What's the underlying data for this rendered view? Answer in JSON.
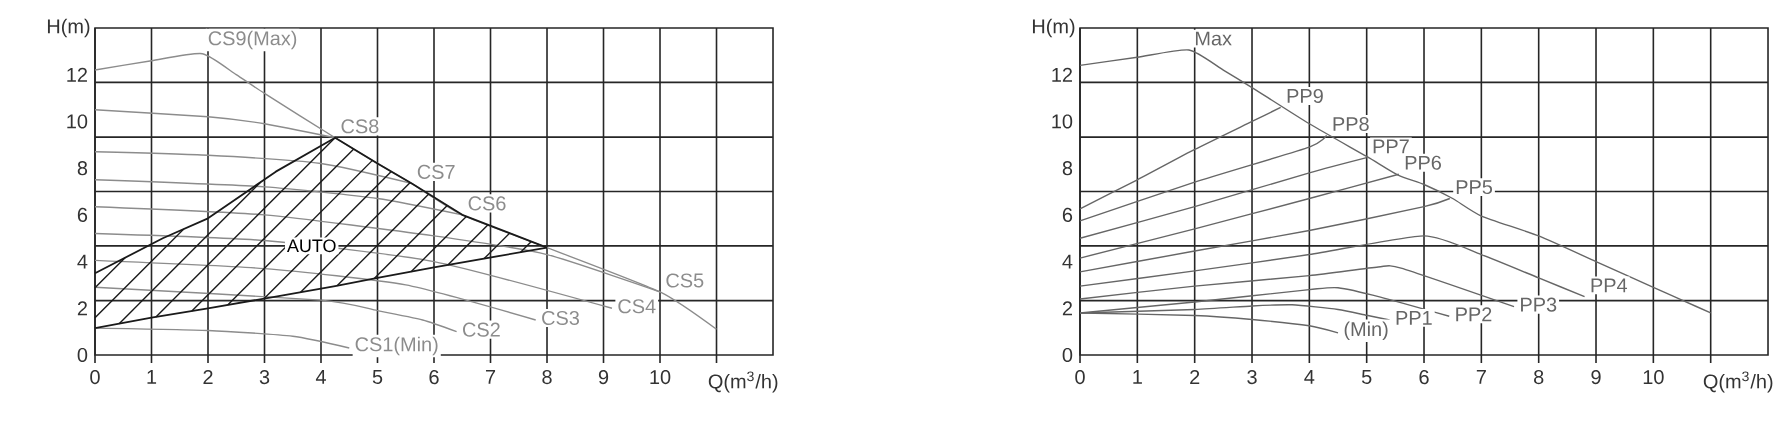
{
  "chart_data": [
    {
      "type": "line",
      "xlabel": "Q(m$^{3}$/h)",
      "ylabel": "H(m)",
      "xlim": [
        0,
        12
      ],
      "ylim": [
        0,
        14
      ],
      "grid": true,
      "xticks": [
        0,
        1,
        2,
        3,
        4,
        5,
        6,
        7,
        8,
        9,
        10,
        {
          "value": 11,
          "label": null
        }
      ],
      "yticks": [
        0,
        2,
        4,
        6,
        8,
        10,
        12,
        {
          "value": 2.33,
          "label": null
        },
        {
          "value": 4.67,
          "label": null
        },
        {
          "value": 7,
          "label": null
        },
        {
          "value": 9.33,
          "label": null
        },
        {
          "value": 11.67,
          "label": null
        }
      ],
      "annotations": [
        "AUTO"
      ],
      "series": [
        {
          "name": "CS9(Max)",
          "color": "#8c8c8c",
          "x": [
            0,
            1,
            1.9,
            2.5,
            3,
            4.25,
            5,
            5.6,
            6.5,
            8,
            10,
            11
          ],
          "values": [
            12.2,
            12.6,
            12.9,
            12.0,
            11.2,
            9.3,
            8.2,
            7.35,
            6.0,
            4.6,
            2.7,
            1.1
          ]
        },
        {
          "name": "CS8",
          "color": "#8c8c8c",
          "x": [
            0,
            2,
            3,
            4.25
          ],
          "values": [
            10.5,
            10.2,
            9.9,
            9.3
          ]
        },
        {
          "name": "CS7",
          "color": "#8c8c8c",
          "x": [
            0,
            2,
            4,
            5.6
          ],
          "values": [
            8.7,
            8.55,
            8.2,
            7.35
          ]
        },
        {
          "name": "CS6",
          "color": "#8c8c8c",
          "x": [
            0,
            3,
            5,
            6.5
          ],
          "values": [
            7.5,
            7.2,
            6.7,
            6.0
          ]
        },
        {
          "name": "CS5",
          "color": "#8c8c8c",
          "x": [
            0,
            3,
            6,
            8,
            10
          ],
          "values": [
            6.35,
            6.0,
            5.1,
            4.3,
            2.7
          ]
        },
        {
          "name": "CS4",
          "color": "#8c8c8c",
          "x": [
            0,
            3,
            6,
            9.15
          ],
          "values": [
            5.2,
            4.9,
            4.0,
            2.0
          ]
        },
        {
          "name": "CS3",
          "color": "#8c8c8c",
          "x": [
            0,
            3,
            5.5,
            7.8
          ],
          "values": [
            4.05,
            3.7,
            3.0,
            1.5
          ]
        },
        {
          "name": "CS2",
          "color": "#8c8c8c",
          "x": [
            0,
            4,
            5,
            5.8,
            6.4
          ],
          "values": [
            2.9,
            2.35,
            1.9,
            1.5,
            1.0
          ]
        },
        {
          "name": "CS1(Min)",
          "color": "#8c8c8c",
          "x": [
            0,
            2,
            3.5,
            4.5
          ],
          "values": [
            1.15,
            1.05,
            0.8,
            0.3
          ]
        },
        {
          "color": "#1a1a1a",
          "x": [
            0,
            1.2,
            2,
            3.2,
            4.25,
            5,
            5.6,
            6.5,
            8
          ],
          "values": [
            3.5,
            5.0,
            5.85,
            7.85,
            9.3,
            8.2,
            7.35,
            6.0,
            4.6
          ]
        },
        {
          "color": "#1a1a1a",
          "x": [
            0,
            1,
            2,
            3.2,
            4.25,
            5,
            6,
            8
          ],
          "values": [
            1.15,
            1.6,
            2.0,
            2.5,
            2.95,
            3.3,
            3.75,
            4.6
          ]
        }
      ]
    },
    {
      "type": "line",
      "xlabel": "Q(m$^{3}$/h)",
      "ylabel": "H(m)",
      "xlim": [
        0,
        12
      ],
      "ylim": [
        0,
        14
      ],
      "grid": true,
      "xticks": [
        0,
        1,
        2,
        3,
        4,
        5,
        6,
        7,
        8,
        9,
        10,
        {
          "value": 11,
          "label": null
        }
      ],
      "yticks": [
        0,
        2,
        4,
        6,
        8,
        10,
        12,
        {
          "value": 2.33,
          "label": null
        },
        {
          "value": 4.67,
          "label": null
        },
        {
          "value": 7,
          "label": null
        },
        {
          "value": 9.33,
          "label": null
        },
        {
          "value": 11.67,
          "label": null
        }
      ],
      "series": [
        {
          "name": "Max",
          "color": "#666666",
          "x": [
            0,
            1,
            1.9,
            2.5,
            3,
            4,
            5,
            5.55,
            6,
            6.5,
            7,
            8,
            9,
            10,
            10.5,
            11
          ],
          "values": [
            12.4,
            12.75,
            13.06,
            12.2,
            11.45,
            9.9,
            8.5,
            7.7,
            7.3,
            6.7,
            5.95,
            5.1,
            4.0,
            2.9,
            2.35,
            1.8
          ]
        },
        {
          "name": "PP9",
          "color": "#666666",
          "x": [
            0,
            1,
            2,
            3,
            3.5
          ],
          "values": [
            6.26,
            7.5,
            8.8,
            10.0,
            10.6
          ]
        },
        {
          "name": "PP8",
          "color": "#666666",
          "x": [
            0,
            2,
            4,
            4.3
          ],
          "values": [
            5.74,
            7.4,
            8.9,
            9.4
          ]
        },
        {
          "name": "PP7",
          "color": "#666666",
          "x": [
            0,
            2,
            4,
            5
          ],
          "values": [
            5.0,
            6.35,
            7.8,
            8.45
          ]
        },
        {
          "name": "PP6",
          "color": "#666666",
          "x": [
            0,
            2,
            4,
            5.56
          ],
          "values": [
            4.15,
            5.4,
            6.7,
            7.74
          ]
        },
        {
          "name": "PP5",
          "color": "#666666",
          "x": [
            0,
            2,
            4,
            6,
            6.45
          ],
          "values": [
            3.56,
            4.45,
            5.33,
            6.35,
            6.7
          ]
        },
        {
          "name": "PP4",
          "color": "#666666",
          "x": [
            0,
            2,
            4,
            6,
            7,
            8,
            8.8
          ],
          "values": [
            2.95,
            3.6,
            4.3,
            5.1,
            4.3,
            3.3,
            2.5
          ]
        },
        {
          "name": "PP3",
          "color": "#666666",
          "x": [
            0,
            2,
            4,
            5.2,
            5.6,
            7.57
          ],
          "values": [
            2.4,
            2.95,
            3.4,
            3.77,
            3.72,
            2.07
          ]
        },
        {
          "name": "PP2",
          "color": "#666666",
          "x": [
            0,
            2,
            4,
            4.5,
            5.24,
            6.44
          ],
          "values": [
            1.8,
            2.27,
            2.8,
            2.88,
            2.48,
            1.66
          ]
        },
        {
          "name": "PP1",
          "color": "#666666",
          "x": [
            0,
            2,
            3,
            3.7,
            4.5,
            5,
            5.4
          ],
          "values": [
            1.8,
            1.95,
            2.1,
            2.15,
            1.95,
            1.7,
            1.5
          ]
        },
        {
          "name": "(Min)",
          "color": "#666666",
          "x": [
            0,
            2,
            3,
            4,
            4.5
          ],
          "values": [
            1.8,
            1.69,
            1.52,
            1.25,
            0.95
          ]
        }
      ]
    }
  ]
}
